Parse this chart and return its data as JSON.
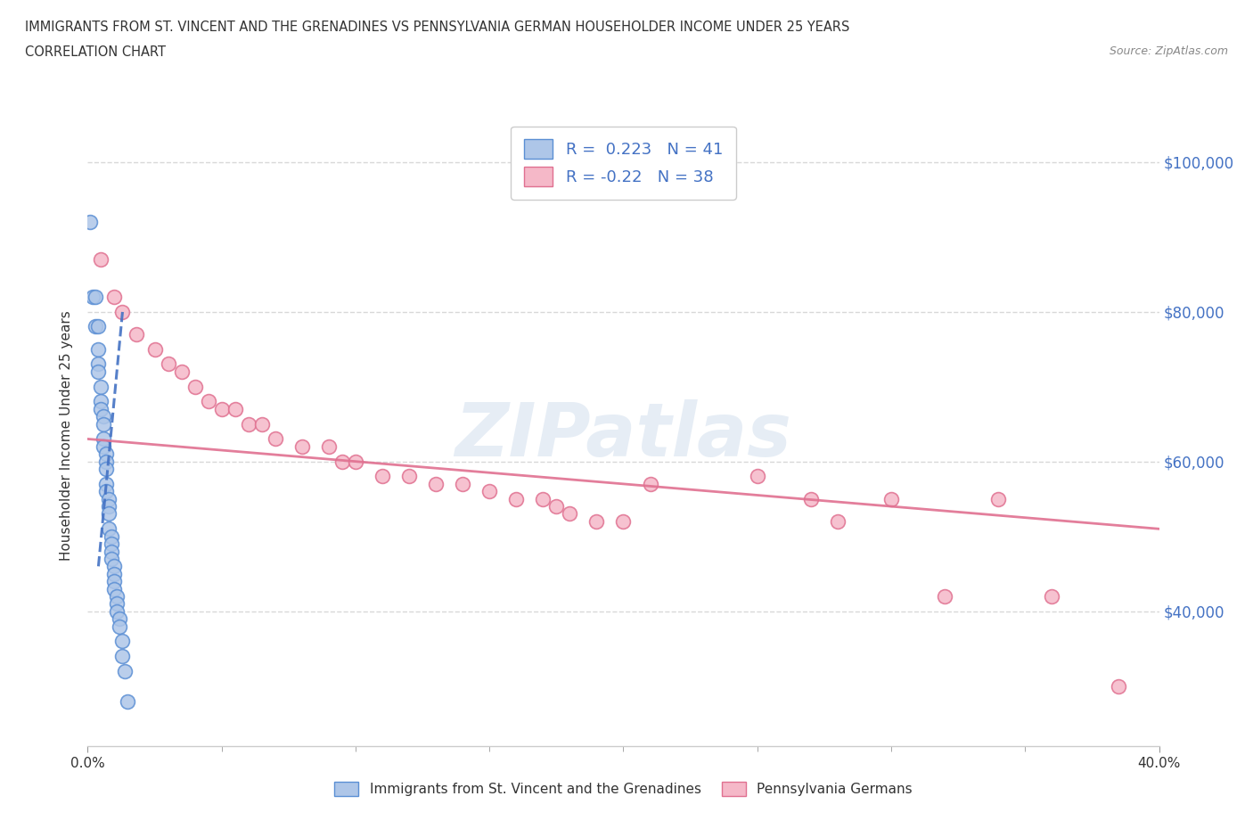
{
  "title_line1": "IMMIGRANTS FROM ST. VINCENT AND THE GRENADINES VS PENNSYLVANIA GERMAN HOUSEHOLDER INCOME UNDER 25 YEARS",
  "title_line2": "CORRELATION CHART",
  "source_text": "Source: ZipAtlas.com",
  "ylabel": "Householder Income Under 25 years",
  "xlim": [
    0.0,
    0.4
  ],
  "ylim": [
    22000,
    105000
  ],
  "watermark": "ZIPatlas",
  "blue_r": 0.223,
  "blue_n": 41,
  "pink_r": -0.22,
  "pink_n": 38,
  "blue_color": "#aec6e8",
  "pink_color": "#f5b8c8",
  "blue_edge_color": "#5b8fd4",
  "pink_edge_color": "#e07090",
  "blue_line_color": "#4472c4",
  "pink_line_color": "#e07090",
  "blue_scatter": [
    [
      0.001,
      92000
    ],
    [
      0.002,
      82000
    ],
    [
      0.003,
      82000
    ],
    [
      0.003,
      78000
    ],
    [
      0.004,
      78000
    ],
    [
      0.004,
      75000
    ],
    [
      0.004,
      73000
    ],
    [
      0.004,
      72000
    ],
    [
      0.005,
      70000
    ],
    [
      0.005,
      68000
    ],
    [
      0.005,
      67000
    ],
    [
      0.006,
      66000
    ],
    [
      0.006,
      65000
    ],
    [
      0.006,
      63000
    ],
    [
      0.006,
      62000
    ],
    [
      0.007,
      61000
    ],
    [
      0.007,
      60000
    ],
    [
      0.007,
      59000
    ],
    [
      0.007,
      57000
    ],
    [
      0.007,
      56000
    ],
    [
      0.008,
      55000
    ],
    [
      0.008,
      54000
    ],
    [
      0.008,
      53000
    ],
    [
      0.008,
      51000
    ],
    [
      0.009,
      50000
    ],
    [
      0.009,
      49000
    ],
    [
      0.009,
      48000
    ],
    [
      0.009,
      47000
    ],
    [
      0.01,
      46000
    ],
    [
      0.01,
      45000
    ],
    [
      0.01,
      44000
    ],
    [
      0.01,
      43000
    ],
    [
      0.011,
      42000
    ],
    [
      0.011,
      41000
    ],
    [
      0.011,
      40000
    ],
    [
      0.012,
      39000
    ],
    [
      0.012,
      38000
    ],
    [
      0.013,
      36000
    ],
    [
      0.013,
      34000
    ],
    [
      0.014,
      32000
    ],
    [
      0.015,
      28000
    ]
  ],
  "pink_scatter": [
    [
      0.005,
      87000
    ],
    [
      0.01,
      82000
    ],
    [
      0.013,
      80000
    ],
    [
      0.018,
      77000
    ],
    [
      0.025,
      75000
    ],
    [
      0.03,
      73000
    ],
    [
      0.035,
      72000
    ],
    [
      0.04,
      70000
    ],
    [
      0.045,
      68000
    ],
    [
      0.05,
      67000
    ],
    [
      0.055,
      67000
    ],
    [
      0.06,
      65000
    ],
    [
      0.065,
      65000
    ],
    [
      0.07,
      63000
    ],
    [
      0.08,
      62000
    ],
    [
      0.09,
      62000
    ],
    [
      0.095,
      60000
    ],
    [
      0.1,
      60000
    ],
    [
      0.11,
      58000
    ],
    [
      0.12,
      58000
    ],
    [
      0.13,
      57000
    ],
    [
      0.14,
      57000
    ],
    [
      0.15,
      56000
    ],
    [
      0.16,
      55000
    ],
    [
      0.17,
      55000
    ],
    [
      0.175,
      54000
    ],
    [
      0.18,
      53000
    ],
    [
      0.19,
      52000
    ],
    [
      0.2,
      52000
    ],
    [
      0.21,
      57000
    ],
    [
      0.25,
      58000
    ],
    [
      0.27,
      55000
    ],
    [
      0.28,
      52000
    ],
    [
      0.3,
      55000
    ],
    [
      0.32,
      42000
    ],
    [
      0.34,
      55000
    ],
    [
      0.36,
      42000
    ],
    [
      0.385,
      30000
    ]
  ],
  "right_ytick_labels": [
    "$100,000",
    "$80,000",
    "$60,000",
    "$40,000"
  ],
  "right_ytick_values": [
    100000,
    80000,
    60000,
    40000
  ],
  "xtick_minor_values": [
    0.05,
    0.1,
    0.15,
    0.2,
    0.25,
    0.3,
    0.35
  ],
  "legend_label_blue": "Immigrants from St. Vincent and the Grenadines",
  "legend_label_pink": "Pennsylvania Germans",
  "background_color": "#ffffff",
  "grid_color": "#d8d8d8"
}
